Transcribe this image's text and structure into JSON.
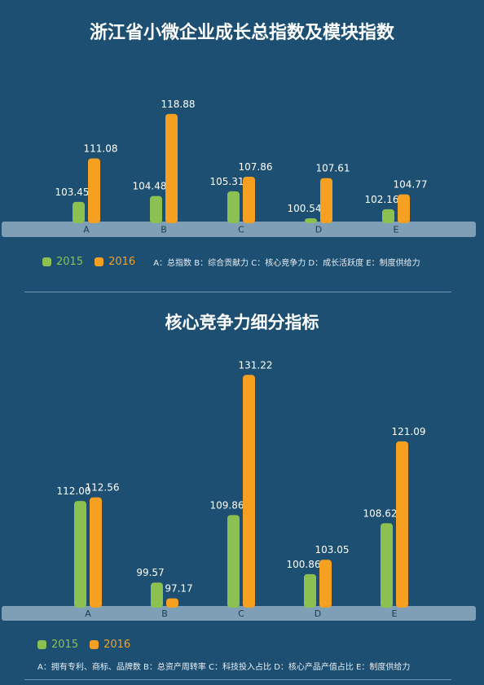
{
  "colors": {
    "c2015": "#8cc151",
    "c2016": "#f5a020",
    "axis_band": "#7e9fb6",
    "background": "#1c4f72"
  },
  "chart_data": [
    {
      "type": "bar",
      "title": "浙江省小微企业成长总指数及模块指数",
      "categories": [
        "A",
        "B",
        "C",
        "D",
        "E"
      ],
      "series": [
        {
          "name": "2015",
          "values": [
            103.45,
            104.48,
            105.31,
            100.54,
            102.16
          ]
        },
        {
          "name": "2016",
          "values": [
            111.08,
            118.88,
            107.86,
            107.61,
            104.77
          ]
        }
      ],
      "ylim": [
        100,
        120
      ],
      "legend_placement": "bottom-left",
      "note": "A：总指数  B：综合贡献力  C：核心竞争力  D：成长活跃度  E：制度供给力"
    },
    {
      "type": "bar",
      "title": "核心竞争力细分指标",
      "categories": [
        "A",
        "B",
        "C",
        "D",
        "E"
      ],
      "series": [
        {
          "name": "2015",
          "values": [
            112.0,
            99.57,
            109.86,
            100.86,
            108.62
          ]
        },
        {
          "name": "2016",
          "values": [
            112.56,
            97.17,
            131.22,
            103.05,
            121.09
          ]
        }
      ],
      "ylim": [
        96,
        132
      ],
      "legend_placement": "bottom-left",
      "note": "A：拥有专利、商标、品牌数  B：总资产周转率  C：科技投入占比  D：核心产品产值占比  E：制度供给力"
    }
  ]
}
